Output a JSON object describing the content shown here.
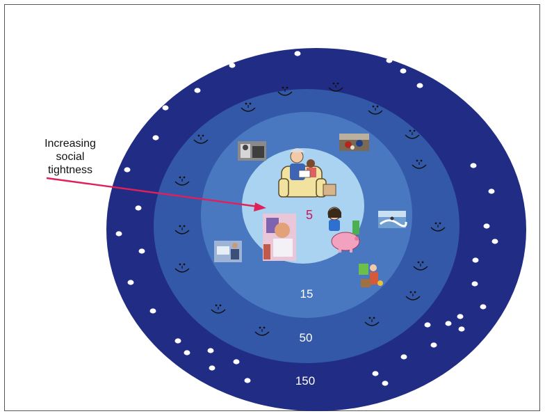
{
  "caption": {
    "line1": "Increasing",
    "line2": "social",
    "line3": "tightness"
  },
  "rings": [
    {
      "label": "5",
      "color": "#a9d3f0",
      "label_color": "#d0145a"
    },
    {
      "label": "15",
      "color": "#4a78c0"
    },
    {
      "label": "50",
      "color": "#3358a8"
    },
    {
      "label": "150",
      "color": "#212d84"
    }
  ],
  "colors": {
    "arrow": "#e0205a",
    "dot": "#ffffff",
    "smiley": "#111111"
  },
  "icons": {
    "dot": "circle-dot",
    "smiley": "smiley-face",
    "photos": [
      "grayscale-photo",
      "cyclists-photo",
      "surf-photo",
      "office-photo",
      "child-computer-photo"
    ],
    "clipart": [
      "family-reading-clipart",
      "girl-piggy-bank-clipart",
      "gardener-clipart"
    ]
  }
}
